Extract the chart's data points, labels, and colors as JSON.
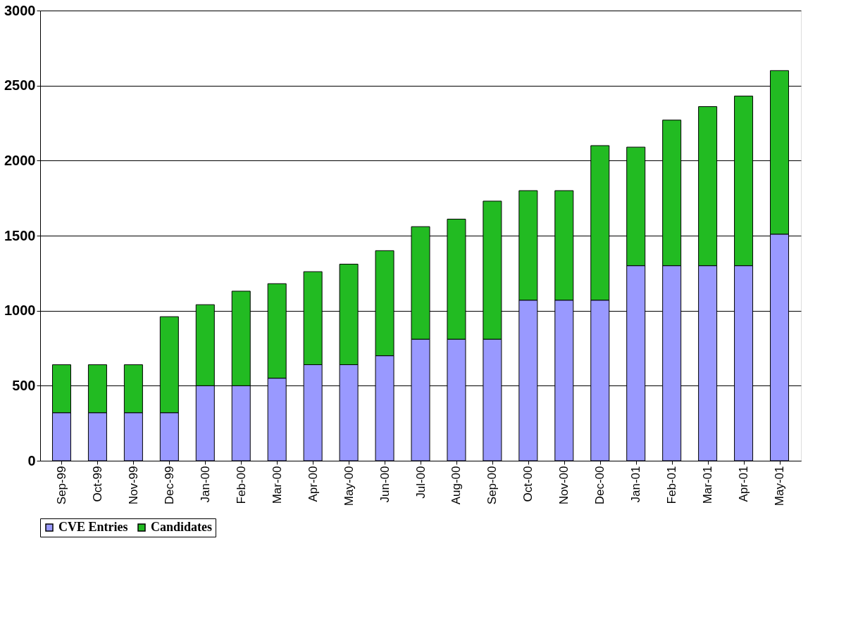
{
  "chart_data": {
    "type": "bar",
    "stacked": true,
    "categories": [
      "Sep-99",
      "Oct-99",
      "Nov-99",
      "Dec-99",
      "Jan-00",
      "Feb-00",
      "Mar-00",
      "Apr-00",
      "May-00",
      "Jun-00",
      "Jul-00",
      "Aug-00",
      "Sep-00",
      "Oct-00",
      "Nov-00",
      "Dec-00",
      "Jan-01",
      "Feb-01",
      "Mar-01",
      "Apr-01",
      "May-01"
    ],
    "series": [
      {
        "name": "CVE Entries",
        "color": "#9999ff",
        "values": [
          320,
          320,
          320,
          320,
          500,
          500,
          550,
          640,
          640,
          700,
          810,
          810,
          810,
          1070,
          1070,
          1070,
          1300,
          1300,
          1300,
          1300,
          1510
        ]
      },
      {
        "name": "Candidates",
        "color": "#22bb22",
        "values": [
          320,
          320,
          320,
          640,
          540,
          630,
          630,
          620,
          670,
          700,
          750,
          800,
          920,
          730,
          730,
          1030,
          790,
          970,
          1060,
          1130,
          1090
        ]
      }
    ],
    "ylim": [
      0,
      3000
    ],
    "yticks": [
      0,
      500,
      1000,
      1500,
      2000,
      2500,
      3000
    ],
    "grid": "y",
    "legend": "bottom"
  }
}
